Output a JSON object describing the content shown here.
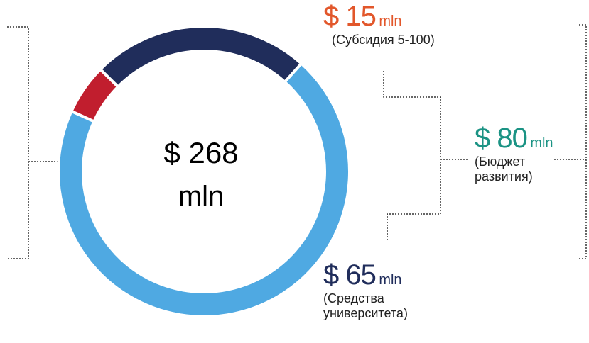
{
  "chart_data": {
    "type": "donut",
    "categories": [
      null,
      "(Субсидия 5-100)",
      "(Средства университета)"
    ],
    "values": [
      188,
      15,
      65
    ],
    "value_labels": [
      null,
      "$ 15",
      "$ 65"
    ],
    "unit_label": "mln",
    "colors": [
      "#4fa9e2",
      "#c11e2e",
      "#202d5b"
    ],
    "label_colors": [
      null,
      "#e2572b",
      "#202d5b"
    ],
    "total": 268,
    "total_label": "$ 268",
    "group": {
      "value": 80,
      "label": "$ 80",
      "name": "(Бюджет развития)",
      "color": "#1b9384"
    }
  }
}
